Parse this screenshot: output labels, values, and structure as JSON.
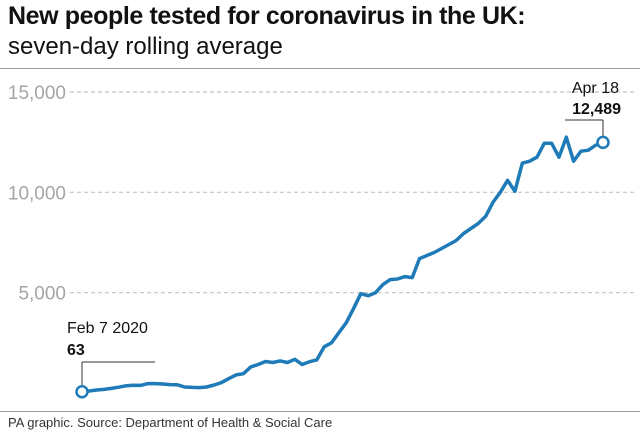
{
  "header": {
    "title": "New people tested for coronavirus in the UK:",
    "subtitle": "seven-day rolling average"
  },
  "footer": {
    "source": "PA graphic. Source: Department of Health & Social Care"
  },
  "colors": {
    "line": "#1f7bb8",
    "grid": "#c4c4c4",
    "tick_label": "#a5a5a5",
    "text": "#111111"
  },
  "chart_data": {
    "type": "line",
    "title": "New people tested for coronavirus in the UK:",
    "subtitle": "seven-day rolling average",
    "xlabel": "",
    "ylabel": "",
    "ylim": [
      0,
      15000
    ],
    "yticks": [
      5000,
      10000,
      15000
    ],
    "ytick_labels": [
      "5,000",
      "10,000",
      "15,000"
    ],
    "grid": true,
    "legend": "none",
    "x": [
      "2020-02-07",
      "2020-02-08",
      "2020-02-09",
      "2020-02-10",
      "2020-02-11",
      "2020-02-12",
      "2020-02-13",
      "2020-02-14",
      "2020-02-15",
      "2020-02-16",
      "2020-02-17",
      "2020-02-18",
      "2020-02-19",
      "2020-02-20",
      "2020-02-21",
      "2020-02-22",
      "2020-02-23",
      "2020-02-24",
      "2020-02-25",
      "2020-02-26",
      "2020-02-27",
      "2020-02-28",
      "2020-02-29",
      "2020-03-01",
      "2020-03-02",
      "2020-03-03",
      "2020-03-04",
      "2020-03-05",
      "2020-03-06",
      "2020-03-07",
      "2020-03-08",
      "2020-03-09",
      "2020-03-10",
      "2020-03-11",
      "2020-03-12",
      "2020-03-13",
      "2020-03-14",
      "2020-03-15",
      "2020-03-16",
      "2020-03-17",
      "2020-03-18",
      "2020-03-19",
      "2020-03-20",
      "2020-03-21",
      "2020-03-22",
      "2020-03-23",
      "2020-03-24",
      "2020-03-25",
      "2020-03-26",
      "2020-03-27",
      "2020-03-28",
      "2020-03-29",
      "2020-03-30",
      "2020-03-31",
      "2020-04-01",
      "2020-04-02",
      "2020-04-03",
      "2020-04-04",
      "2020-04-05",
      "2020-04-06",
      "2020-04-07",
      "2020-04-08",
      "2020-04-09",
      "2020-04-10",
      "2020-04-11",
      "2020-04-12",
      "2020-04-13",
      "2020-04-14",
      "2020-04-15",
      "2020-04-16",
      "2020-04-17",
      "2020-04-18"
    ],
    "series": [
      {
        "values": [
          63,
          100,
          150,
          180,
          230,
          290,
          360,
          390,
          380,
          470,
          470,
          450,
          420,
          410,
          300,
          280,
          270,
          300,
          400,
          520,
          720,
          900,
          960,
          1300,
          1420,
          1570,
          1520,
          1600,
          1520,
          1680,
          1420,
          1560,
          1650,
          2300,
          2500,
          3000,
          3500,
          4200,
          4950,
          4850,
          5000,
          5400,
          5650,
          5680,
          5800,
          5750,
          6700,
          6850,
          7000,
          7200,
          7400,
          7600,
          7950,
          8200,
          8450,
          8800,
          9500,
          10000,
          10600,
          10050,
          11450,
          11550,
          11750,
          12450,
          12450,
          11750,
          12750,
          11550,
          12050,
          12100,
          12350,
          12489
        ]
      }
    ],
    "annotations": [
      {
        "label": "Feb 7 2020",
        "value": "63"
      },
      {
        "label": "Apr 18",
        "value": "12,489"
      }
    ]
  }
}
